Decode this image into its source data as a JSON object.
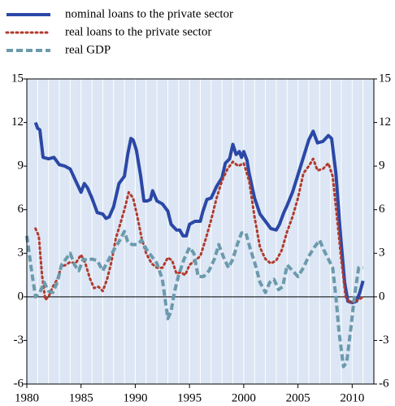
{
  "chart_data": {
    "type": "line",
    "xlim": [
      1980,
      2012
    ],
    "xticks": [
      1980,
      1985,
      1990,
      1995,
      2000,
      2005,
      2010
    ],
    "ylim": [
      -6,
      15
    ],
    "yticks": [
      -6,
      -3,
      0,
      3,
      6,
      9,
      12,
      15
    ],
    "y2lim": [
      -6,
      15
    ],
    "y2ticks": [
      -6,
      -3,
      0,
      3,
      6,
      9,
      12,
      15
    ],
    "legend": "top-left",
    "series": [
      {
        "name": "nominal loans to the private sector",
        "color": "#2b48a6",
        "style": "solid",
        "x": [
          1980.8,
          1981.0,
          1981.2,
          1981.5,
          1982.0,
          1982.5,
          1983.0,
          1983.5,
          1984.0,
          1984.5,
          1985.0,
          1985.3,
          1985.6,
          1986.0,
          1986.5,
          1987.0,
          1987.3,
          1987.6,
          1988.0,
          1988.5,
          1989.0,
          1989.3,
          1989.6,
          1989.8,
          1990.1,
          1990.5,
          1990.8,
          1991.1,
          1991.4,
          1991.6,
          1992.0,
          1992.5,
          1993.0,
          1993.3,
          1993.8,
          1994.1,
          1994.4,
          1994.7,
          1995.0,
          1995.5,
          1996.0,
          1996.2,
          1996.6,
          1997.0,
          1997.5,
          1998.0,
          1998.3,
          1998.7,
          1999.0,
          1999.3,
          1999.6,
          1999.8,
          2000.0,
          2000.3,
          2000.5,
          2001.0,
          2001.5,
          2002.0,
          2002.5,
          2003.0,
          2003.3,
          2003.7,
          2004.0,
          2004.5,
          2005.0,
          2005.5,
          2006.0,
          2006.4,
          2006.8,
          2007.3,
          2007.8,
          2008.1,
          2008.5,
          2008.9,
          2009.3,
          2009.6,
          2010.0,
          2010.4,
          2010.7,
          2011.0
        ],
        "values": [
          12.0,
          11.6,
          11.5,
          9.6,
          9.5,
          9.6,
          9.1,
          9.0,
          8.8,
          8.0,
          7.2,
          7.8,
          7.5,
          6.8,
          5.8,
          5.7,
          5.4,
          5.5,
          6.2,
          7.8,
          8.3,
          9.8,
          10.9,
          10.8,
          10.1,
          8.3,
          6.6,
          6.6,
          6.7,
          7.3,
          6.6,
          6.4,
          5.9,
          5.0,
          4.6,
          4.6,
          4.2,
          4.2,
          5.0,
          5.2,
          5.2,
          5.8,
          6.7,
          6.8,
          7.6,
          8.2,
          9.2,
          9.5,
          10.5,
          9.8,
          10.0,
          9.6,
          10.0,
          9.4,
          8.5,
          6.8,
          5.7,
          5.2,
          4.7,
          4.6,
          5.0,
          5.8,
          6.3,
          7.2,
          8.4,
          9.6,
          10.8,
          11.4,
          10.6,
          10.7,
          11.1,
          10.9,
          8.5,
          4.5,
          1.0,
          -0.3,
          -0.4,
          -0.3,
          0.3,
          1.1
        ]
      },
      {
        "name": "real loans to the private sector",
        "color": "#b23a2c",
        "style": "dotted",
        "x": [
          1980.8,
          1981.1,
          1981.4,
          1981.7,
          1982.0,
          1982.4,
          1982.8,
          1983.2,
          1983.6,
          1984.0,
          1984.5,
          1985.0,
          1985.4,
          1985.8,
          1986.2,
          1986.6,
          1987.0,
          1987.4,
          1987.8,
          1988.2,
          1988.6,
          1989.0,
          1989.4,
          1989.8,
          1990.2,
          1990.6,
          1991.0,
          1991.5,
          1992.0,
          1992.5,
          1993.0,
          1993.4,
          1993.8,
          1994.2,
          1994.6,
          1995.0,
          1995.5,
          1996.0,
          1996.5,
          1997.0,
          1997.5,
          1998.0,
          1998.5,
          1999.0,
          1999.5,
          2000.0,
          2000.5,
          2001.0,
          2001.5,
          2002.0,
          2002.5,
          2003.0,
          2003.5,
          2004.0,
          2004.5,
          2005.0,
          2005.5,
          2006.0,
          2006.4,
          2006.8,
          2007.3,
          2007.8,
          2008.2,
          2008.6,
          2009.0,
          2009.4,
          2009.8,
          2010.2,
          2010.6,
          2011.0
        ],
        "values": [
          4.7,
          4.2,
          1.5,
          -0.2,
          0.0,
          0.7,
          1.2,
          2.1,
          2.2,
          2.4,
          2.3,
          2.9,
          2.3,
          1.3,
          0.6,
          0.7,
          0.4,
          1.2,
          2.4,
          4.0,
          5.0,
          6.0,
          7.2,
          6.8,
          5.5,
          4.0,
          3.0,
          2.3,
          2.0,
          2.0,
          2.7,
          2.5,
          1.6,
          1.7,
          1.5,
          2.2,
          2.5,
          2.8,
          4.0,
          5.3,
          6.8,
          8.0,
          8.8,
          9.3,
          9.0,
          9.2,
          8.0,
          5.5,
          3.4,
          2.6,
          2.3,
          2.5,
          3.2,
          4.5,
          5.5,
          6.8,
          8.5,
          9.0,
          9.5,
          8.7,
          8.8,
          9.2,
          8.3,
          5.5,
          2.5,
          0.0,
          -0.4,
          -0.3,
          -0.2,
          0.0
        ]
      },
      {
        "name": "real GDP",
        "color": "#6b9aac",
        "style": "dashed",
        "x": [
          1980.0,
          1980.4,
          1980.8,
          1981.2,
          1981.6,
          1982.0,
          1982.4,
          1982.8,
          1983.2,
          1983.6,
          1984.0,
          1984.4,
          1984.8,
          1985.2,
          1985.6,
          1986.0,
          1986.5,
          1987.0,
          1987.5,
          1988.0,
          1988.5,
          1989.0,
          1989.3,
          1989.7,
          1990.2,
          1990.6,
          1991.0,
          1991.5,
          1992.0,
          1992.5,
          1993.0,
          1993.3,
          1993.6,
          1994.0,
          1994.5,
          1995.0,
          1995.4,
          1995.8,
          1996.3,
          1996.8,
          1997.3,
          1997.7,
          1998.2,
          1998.6,
          1999.0,
          1999.4,
          1999.8,
          2000.2,
          2000.6,
          2001.0,
          2001.5,
          2002.0,
          2002.4,
          2002.8,
          2003.2,
          2003.6,
          2004.0,
          2004.5,
          2005.0,
          2005.5,
          2006.0,
          2006.5,
          2007.0,
          2007.4,
          2007.8,
          2008.2,
          2008.5,
          2008.8,
          2009.2,
          2009.5,
          2009.9,
          2010.2,
          2010.6,
          2011.0
        ],
        "values": [
          4.2,
          2.0,
          0.0,
          0.3,
          1.0,
          0.4,
          0.3,
          1.0,
          2.2,
          2.6,
          3.0,
          2.2,
          1.8,
          2.6,
          2.5,
          2.6,
          2.5,
          1.8,
          2.5,
          3.2,
          3.8,
          4.5,
          3.8,
          3.6,
          3.6,
          3.9,
          3.3,
          2.8,
          2.3,
          1.2,
          -1.5,
          -1.0,
          0.3,
          1.5,
          2.6,
          3.4,
          3.0,
          1.4,
          1.4,
          1.8,
          2.6,
          3.6,
          2.6,
          2.0,
          2.6,
          3.6,
          4.4,
          4.4,
          3.3,
          2.4,
          1.0,
          0.3,
          1.0,
          1.2,
          0.5,
          0.7,
          2.2,
          1.8,
          1.4,
          2.0,
          2.8,
          3.4,
          3.9,
          3.2,
          2.6,
          2.0,
          0.0,
          -2.5,
          -4.8,
          -4.5,
          -2.0,
          0.0,
          2.0,
          2.0
        ]
      }
    ]
  }
}
